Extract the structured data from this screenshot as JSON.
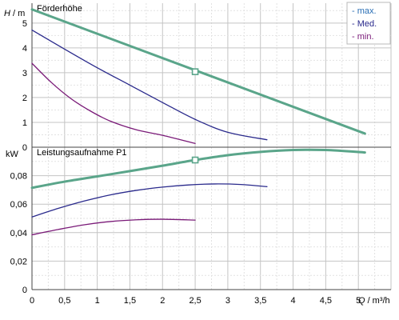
{
  "colors": {
    "max": "#5aa58a",
    "med": "#2a2a8c",
    "min": "#7a1a78",
    "grid": "#c9c9c9",
    "axis": "#444444"
  },
  "chart_data": [
    {
      "type": "line",
      "title": "Förderhöhe",
      "ylabel_symbol": "H",
      "ylabel_unit": "/ m",
      "xlim": [
        0,
        5.5
      ],
      "ylim": [
        0,
        5.8
      ],
      "yticks": [
        0,
        1,
        2,
        3,
        4,
        5
      ],
      "ytick_labels": [
        "0",
        "1",
        "2",
        "3",
        "4",
        "5"
      ],
      "legend_position": "top-right",
      "legend": [
        {
          "key": "max",
          "label": "- max."
        },
        {
          "key": "med",
          "label": "- Med."
        },
        {
          "key": "min",
          "label": "- min."
        }
      ],
      "series": [
        {
          "key": "max",
          "x": [
            0,
            5.1
          ],
          "y": [
            5.55,
            0.55
          ]
        },
        {
          "key": "med",
          "x": [
            0,
            0.5,
            1.0,
            1.5,
            2.0,
            2.5,
            3.0,
            3.6
          ],
          "y": [
            4.72,
            3.95,
            3.2,
            2.5,
            1.8,
            1.12,
            0.6,
            0.3
          ]
        },
        {
          "key": "min",
          "x": [
            0,
            0.3,
            0.6,
            0.9,
            1.2,
            1.6,
            2.0,
            2.5
          ],
          "y": [
            3.38,
            2.6,
            1.95,
            1.45,
            1.05,
            0.7,
            0.48,
            0.15
          ]
        }
      ],
      "marker": {
        "x": 2.5,
        "y": 3.04
      }
    },
    {
      "type": "line",
      "title": "Leistungsaufnahme P1",
      "ylabel_unit": "kW",
      "xlabel_symbol": "Q",
      "xlabel_unit": "/ m³/h",
      "xlim": [
        0,
        5.5
      ],
      "ylim": [
        0,
        0.1
      ],
      "xticks": [
        0,
        0.5,
        1,
        1.5,
        2,
        2.5,
        3,
        3.5,
        4,
        4.5,
        5
      ],
      "xtick_labels": [
        "0",
        "0,5",
        "1",
        "1,5",
        "2",
        "2,5",
        "3",
        "3,5",
        "4",
        "4,5",
        "5"
      ],
      "yticks": [
        0,
        0.02,
        0.04,
        0.06,
        0.08
      ],
      "ytick_labels": [
        "0",
        "0,02",
        "0,04",
        "0,06",
        "0,08"
      ],
      "series": [
        {
          "key": "max",
          "x": [
            0,
            0.5,
            1.0,
            1.5,
            2.0,
            2.5,
            3.0,
            3.5,
            4.0,
            4.5,
            5.1
          ],
          "y": [
            0.0715,
            0.0758,
            0.0795,
            0.0832,
            0.087,
            0.091,
            0.0944,
            0.0967,
            0.098,
            0.098,
            0.0963
          ]
        },
        {
          "key": "med",
          "x": [
            0,
            0.4,
            0.8,
            1.2,
            1.6,
            2.0,
            2.4,
            2.8,
            3.2,
            3.6
          ],
          "y": [
            0.051,
            0.057,
            0.0622,
            0.0665,
            0.0697,
            0.072,
            0.0735,
            0.0742,
            0.0738,
            0.0723
          ]
        },
        {
          "key": "min",
          "x": [
            0,
            0.4,
            0.8,
            1.2,
            1.6,
            2.0,
            2.5
          ],
          "y": [
            0.0385,
            0.0422,
            0.0455,
            0.0478,
            0.049,
            0.0494,
            0.0488
          ]
        }
      ],
      "marker": {
        "x": 2.5,
        "y": 0.091
      }
    }
  ]
}
